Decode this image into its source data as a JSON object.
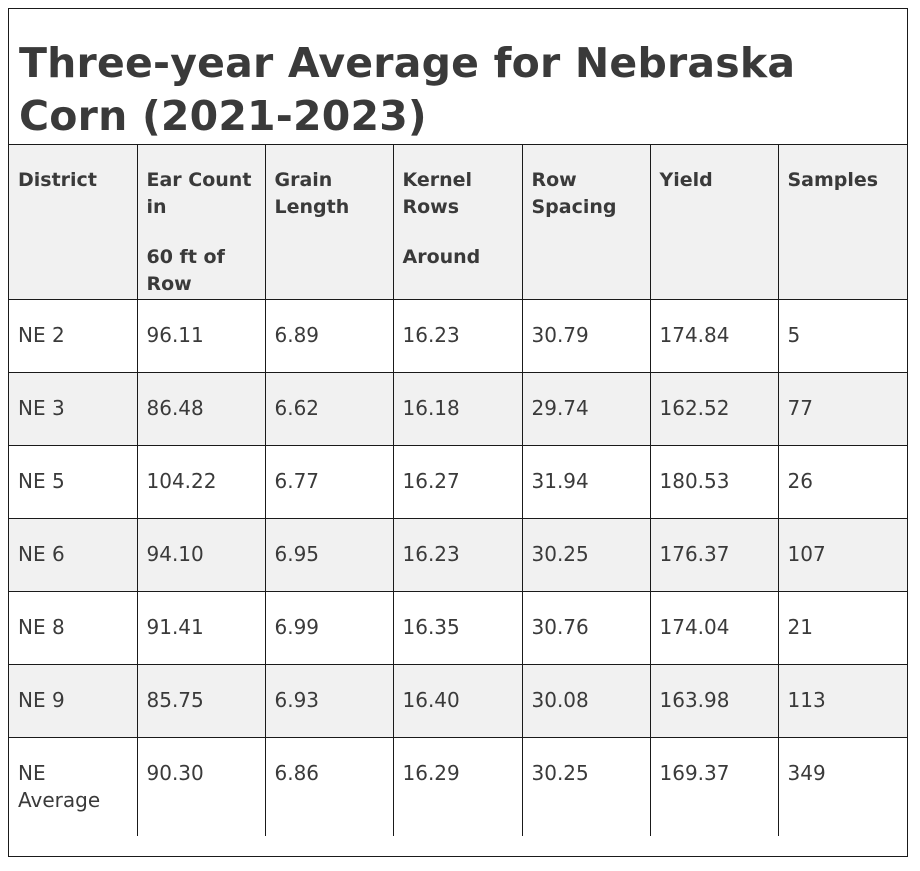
{
  "caption": "Three-year Average for Nebraska Corn (2021-2023)",
  "columns": [
    {
      "line1": "District",
      "line2": ""
    },
    {
      "line1": "Ear Count in",
      "line2": "60 ft of Row"
    },
    {
      "line1": "Grain Length",
      "line2": ""
    },
    {
      "line1": "Kernel Rows",
      "line2": "Around"
    },
    {
      "line1": "Row Spacing",
      "line2": ""
    },
    {
      "line1": "Yield",
      "line2": ""
    },
    {
      "line1": "Samples",
      "line2": ""
    }
  ],
  "rows": [
    [
      "NE 2",
      "96.11",
      "6.89",
      "16.23",
      "30.79",
      "174.84",
      "5"
    ],
    [
      "NE 3",
      "86.48",
      "6.62",
      "16.18",
      "29.74",
      "162.52",
      "77"
    ],
    [
      "NE 5",
      "104.22",
      "6.77",
      "16.27",
      "31.94",
      "180.53",
      "26"
    ],
    [
      "NE 6",
      "94.10",
      "6.95",
      "16.23",
      "30.25",
      "176.37",
      "107"
    ],
    [
      "NE 8",
      "91.41",
      "6.99",
      "16.35",
      "30.76",
      "174.04",
      "21"
    ],
    [
      "NE 9",
      "85.75",
      "6.93",
      "16.40",
      "30.08",
      "163.98",
      "113"
    ],
    [
      "NE Average",
      "90.30",
      "6.86",
      "16.29",
      "30.25",
      "169.37",
      "349"
    ]
  ]
}
